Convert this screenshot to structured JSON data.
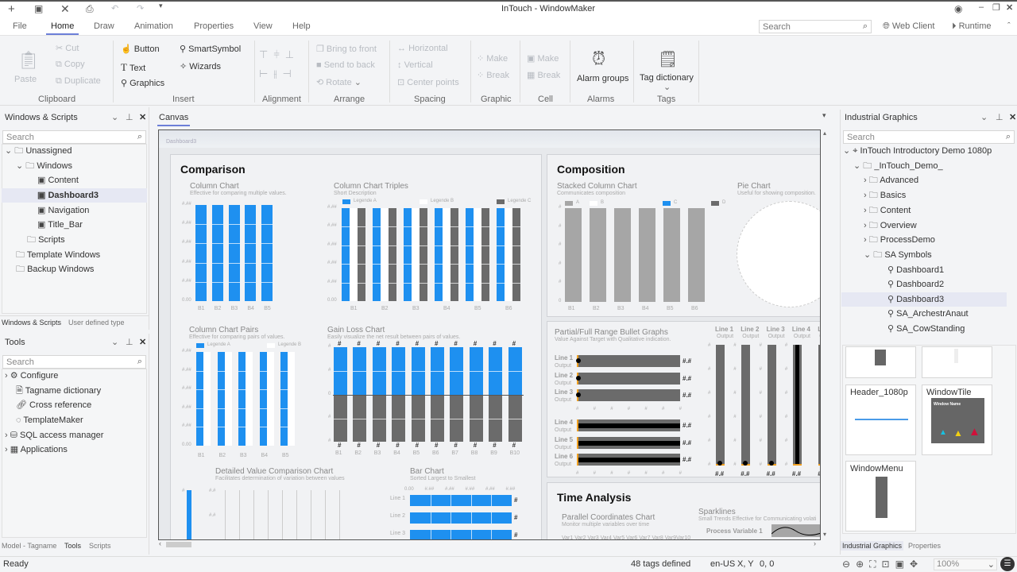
{
  "app": {
    "title": "InTouch - WindowMaker"
  },
  "quick_access": [
    "new-icon",
    "save-icon",
    "close-icon",
    "print-icon",
    "undo-icon",
    "redo-icon",
    "customize-icon"
  ],
  "menu": {
    "tabs": [
      "File",
      "Home",
      "Draw",
      "Animation",
      "Properties",
      "View",
      "Help"
    ],
    "active": "Home",
    "search_placeholder": "Search",
    "web_client": "Web Client",
    "runtime": "Runtime"
  },
  "ribbon": {
    "clipboard": {
      "label": "Clipboard",
      "paste": "Paste",
      "cut": "Cut",
      "copy": "Copy",
      "duplicate": "Duplicate"
    },
    "insert": {
      "label": "Insert",
      "button": "Button",
      "text": "Text",
      "graphics": "Graphics",
      "smartsymbol": "SmartSymbol",
      "wizards": "Wizards"
    },
    "alignment": {
      "label": "Alignment"
    },
    "arrange": {
      "label": "Arrange",
      "bring_front": "Bring to front",
      "send_back": "Send to back",
      "rotate": "Rotate"
    },
    "spacing": {
      "label": "Spacing",
      "horizontal": "Horizontal",
      "vertical": "Vertical",
      "center": "Center points"
    },
    "graphic": {
      "label": "Graphic",
      "make": "Make",
      "break": "Break"
    },
    "cell": {
      "label": "Cell",
      "make": "Make",
      "break": "Break"
    },
    "alarms": {
      "label": "Alarms",
      "alarm_groups": "Alarm groups"
    },
    "tags": {
      "label": "Tags",
      "tag_dictionary": "Tag dictionary"
    }
  },
  "left_top": {
    "title": "Windows & Scripts",
    "search_placeholder": "Search",
    "items": [
      {
        "label": "Unassigned"
      },
      {
        "label": "Windows"
      },
      {
        "label": "Content"
      },
      {
        "label": "Dashboard3"
      },
      {
        "label": "Navigation"
      },
      {
        "label": "Title_Bar"
      },
      {
        "label": "Scripts"
      },
      {
        "label": "Template Windows"
      },
      {
        "label": "Backup Windows"
      }
    ],
    "tabs": [
      "Windows & Scripts",
      "User defined type"
    ]
  },
  "left_bottom": {
    "title": "Tools",
    "search_placeholder": "Search",
    "items": [
      {
        "label": "Configure"
      },
      {
        "label": "Tagname dictionary"
      },
      {
        "label": "Cross reference"
      },
      {
        "label": "TemplateMaker"
      },
      {
        "label": "SQL access manager"
      },
      {
        "label": "Applications"
      }
    ],
    "tabs": [
      "Model - Tagname",
      "Tools",
      "Scripts"
    ]
  },
  "canvas": {
    "tab": "Canvas",
    "window_name": "Dashboard3"
  },
  "dashboard": {
    "comparison": "Comparison",
    "composition": "Composition",
    "time_analysis": "Time Analysis",
    "column_chart": {
      "title": "Column Chart",
      "desc": "Effective for comparing multiple values.",
      "yticks": [
        "#.##",
        "#.##",
        "#.##",
        "#.##",
        "#.##",
        "0.00"
      ],
      "categories": [
        "B1",
        "B2",
        "B3",
        "B4",
        "B5"
      ],
      "color": "#1e90f0"
    },
    "triples": {
      "title": "Column Chart Triples",
      "desc": "Short Description",
      "legend": [
        "Legende A",
        "Legende B",
        "Legende C"
      ],
      "colors": [
        "#1e90f0",
        "#ffffff",
        "#6b6b6b"
      ],
      "yticks": [
        "#.##",
        "#.##",
        "#.##",
        "#.##",
        "#.##",
        "0.00"
      ],
      "categories": [
        "B1",
        "B2",
        "B3",
        "B4",
        "B5",
        "B6"
      ]
    },
    "pairs": {
      "title": "Column Chart Pairs",
      "desc": "Effective for comparing pairs of values.",
      "legend": [
        "Legende A",
        "Legende B"
      ],
      "colors": [
        "#1e90f0",
        "#ffffff"
      ],
      "yticks": [
        "#.##",
        "#.##",
        "#.##",
        "#.##",
        "#.##",
        "0.00"
      ],
      "categories": [
        "B1",
        "B2",
        "B3",
        "B4",
        "B5"
      ]
    },
    "gainloss": {
      "title": "Gain Loss Chart",
      "desc": "Easily visualize the net result between pairs of values.",
      "yticks": [
        "#",
        "#",
        "0",
        "#",
        "#"
      ],
      "categories": [
        "B1",
        "B2",
        "B3",
        "B4",
        "B5",
        "B6",
        "B7",
        "B8",
        "B9",
        "B10"
      ],
      "value_label": "#",
      "colors": [
        "#1e90f0",
        "#6b6b6b"
      ]
    },
    "detailed": {
      "title": "Detailed Value Comparison Chart",
      "desc": "Facilitates determination of variation between values",
      "labels": [
        "#",
        "#.#",
        "#.#"
      ]
    },
    "barchart": {
      "title": "Bar Chart",
      "desc": "Sorted Largest to Smallest",
      "xticks": [
        "0.00",
        "#.##",
        "#.##",
        "#.##",
        "#.##",
        "#.##"
      ],
      "rows": [
        "Line 1",
        "Line 2",
        "Line 3"
      ],
      "value_label": "#"
    },
    "stacked": {
      "title": "Stacked Column Chart",
      "desc": "Communicates composition",
      "legend": [
        "A",
        "B",
        "C",
        "D"
      ],
      "colors": [
        "#a6a6a6",
        "#ffffff",
        "#1e90f0",
        "#6b6b6b"
      ],
      "yticks": [
        "#",
        "#",
        "#",
        "#",
        "#",
        "0"
      ],
      "categories": [
        "B1",
        "B2",
        "B3",
        "B4",
        "B5",
        "B6"
      ]
    },
    "pie": {
      "title": "Pie Chart",
      "desc": "Useful for showing composition."
    },
    "bullet": {
      "title": "Partial/Full Range Bullet Graphs",
      "desc": "Value Against Target with Qualitative indication.",
      "rows": [
        {
          "label": "Line 1",
          "sub": "Output",
          "value": "#.#"
        },
        {
          "label": "Line 2",
          "sub": "Output",
          "value": "#.#"
        },
        {
          "label": "Line 3",
          "sub": "Output",
          "value": "#.#"
        },
        {
          "label": "Line 4",
          "sub": "Output",
          "value": "#.#"
        },
        {
          "label": "Line 5",
          "sub": "Output",
          "value": "#.#"
        },
        {
          "label": "Line 6",
          "sub": "Output",
          "value": "#.#"
        }
      ],
      "tick": "#",
      "vertical": [
        {
          "label": "Line 1",
          "sub": "Output",
          "value": "#.#"
        },
        {
          "label": "Line 2",
          "sub": "Output",
          "value": "#.#"
        },
        {
          "label": "Line 3",
          "sub": "Output",
          "value": "#.#"
        },
        {
          "label": "Line 4",
          "sub": "Output",
          "value": "#.#"
        },
        {
          "label": "Li",
          "sub": "Ou",
          "value": "#"
        }
      ]
    },
    "parallel": {
      "title": "Parallel Coordinates Chart",
      "desc": "Monitor multiple variables over time",
      "vars": "Var1 Var2 Var3 Var4 Var5 Var6 Var7 Var8 Var9Var10"
    },
    "sparklines": {
      "title": "Sparklines",
      "desc": "Small Trends Effective for Communicating volati",
      "pv": "Process Variable 1"
    }
  },
  "right": {
    "title": "Industrial Graphics",
    "search_placeholder": "Search",
    "items": [
      {
        "label": "InTouch Introductory Demo 1080p"
      },
      {
        "label": "_InTouch_Demo_"
      },
      {
        "label": "Advanced"
      },
      {
        "label": "Basics"
      },
      {
        "label": "Content"
      },
      {
        "label": "Overview"
      },
      {
        "label": "ProcessDemo"
      },
      {
        "label": "SA Symbols"
      },
      {
        "label": "Dashboard1"
      },
      {
        "label": "Dashboard2"
      },
      {
        "label": "Dashboard3"
      },
      {
        "label": "SA_ArchestrAnaut"
      },
      {
        "label": "SA_CowStanding"
      }
    ],
    "thumbs": {
      "header": "Header_1080p",
      "tile": "WindowTile",
      "tile_inner": "Window Name",
      "menu": "WindowMenu"
    },
    "tabs": [
      "Industrial Graphics",
      "Properties"
    ],
    "zoom": "100%"
  },
  "status": {
    "ready": "Ready",
    "tags": "48 tags defined",
    "locale": "en-US",
    "xy_label": "X, Y",
    "xy": "0, 0"
  }
}
